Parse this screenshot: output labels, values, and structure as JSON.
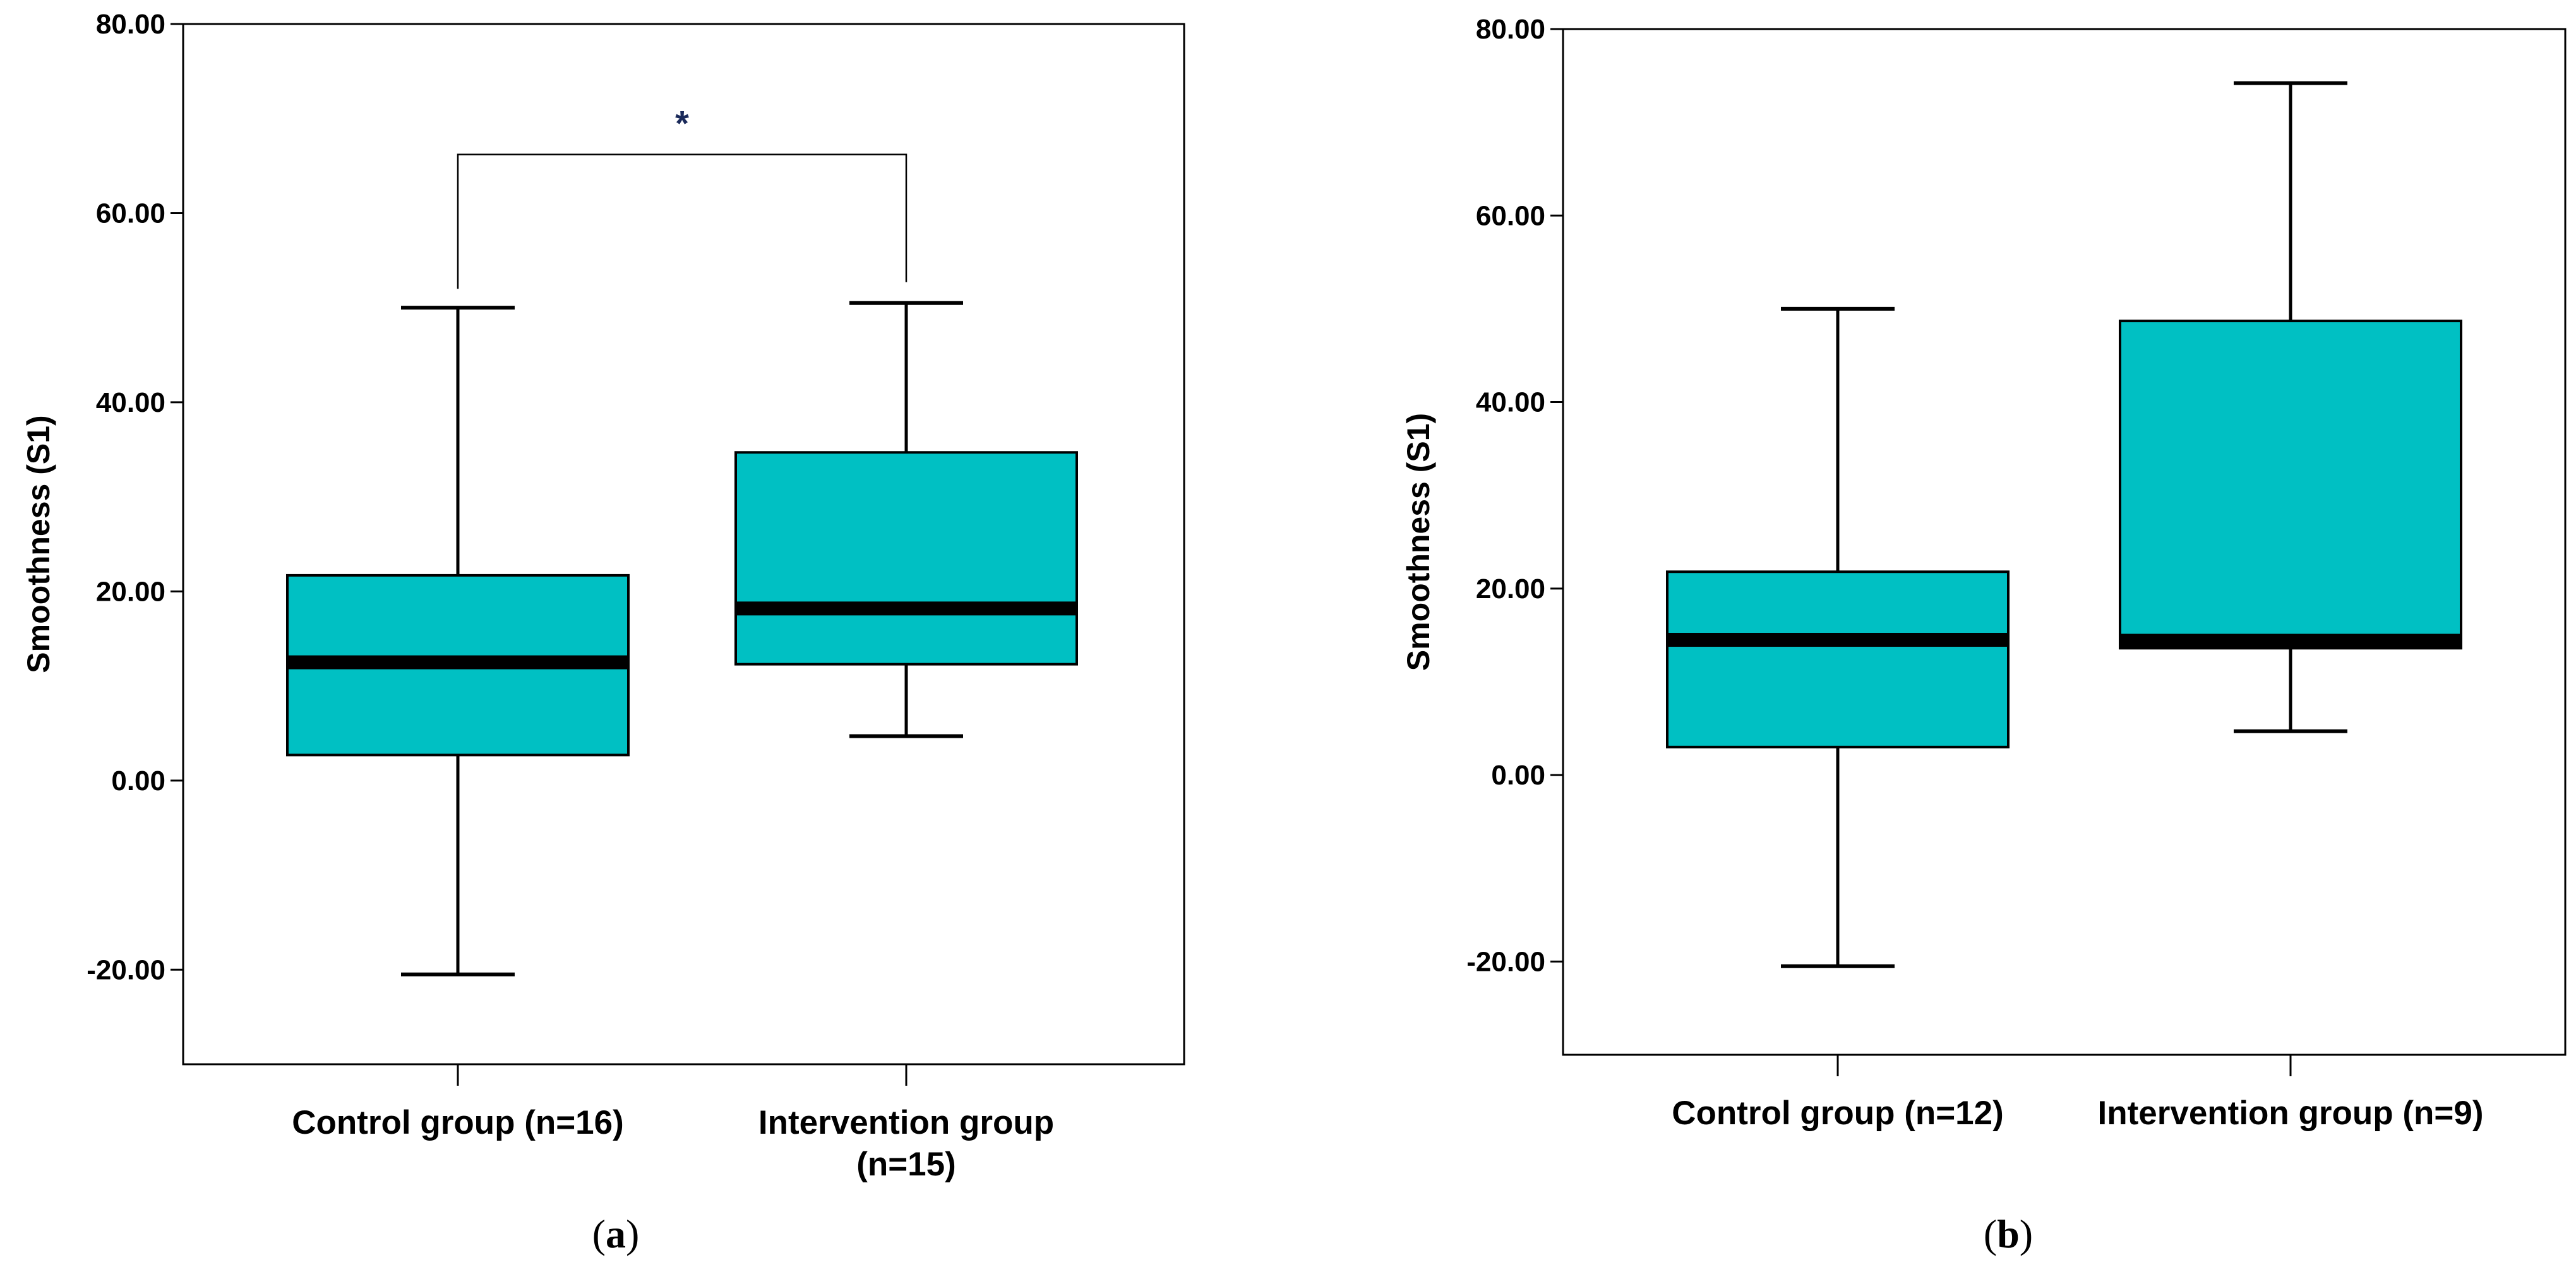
{
  "chart_data": [
    {
      "type": "boxplot",
      "panel_label_open": "(",
      "panel_label": "a",
      "panel_label_close": ")",
      "ylabel": "Smoothness (S1)",
      "ylim": [
        -30,
        80
      ],
      "yticks": [
        {
          "value": 80,
          "label": "80.00"
        },
        {
          "value": 60,
          "label": "60.00"
        },
        {
          "value": 40,
          "label": "40.00"
        },
        {
          "value": 20,
          "label": "20.00"
        },
        {
          "value": 0,
          "label": "0.00"
        },
        {
          "value": -20,
          "label": "-20.00"
        }
      ],
      "box_color": "#00c0c3",
      "groups": [
        {
          "label_lines": [
            "Control group (n=16)"
          ],
          "min": -20.5,
          "q1": 2.7,
          "median": 12.5,
          "q3": 21.7,
          "max": 50.0
        },
        {
          "label_lines": [
            "Intervention group",
            "(n=15)"
          ],
          "min": 4.7,
          "q1": 12.3,
          "median": 18.2,
          "q3": 34.7,
          "max": 50.5
        }
      ],
      "significance": {
        "from_group": 0,
        "to_group": 1,
        "bracket_value": 66.2,
        "left_end_value": 52.0,
        "right_end_value": 52.7,
        "symbol": "*"
      }
    },
    {
      "type": "boxplot",
      "panel_label_open": "(",
      "panel_label": "b",
      "panel_label_close": ")",
      "ylabel": "Smoothness (S1)",
      "ylim": [
        -30,
        80
      ],
      "yticks": [
        {
          "value": 80,
          "label": "80.00"
        },
        {
          "value": 60,
          "label": "60.00"
        },
        {
          "value": 40,
          "label": "40.00"
        },
        {
          "value": 20,
          "label": "20.00"
        },
        {
          "value": 0,
          "label": "0.00"
        },
        {
          "value": -20,
          "label": "-20.00"
        }
      ],
      "box_color": "#00c0c3",
      "groups": [
        {
          "label_lines": [
            "Control group (n=12)"
          ],
          "min": -20.5,
          "q1": 3.0,
          "median": 14.5,
          "q3": 21.8,
          "max": 50.0
        },
        {
          "label_lines": [
            "Intervention group (n=9)"
          ],
          "min": 4.7,
          "q1": 13.6,
          "median": 14.4,
          "q3": 48.7,
          "max": 74.2
        }
      ]
    }
  ]
}
